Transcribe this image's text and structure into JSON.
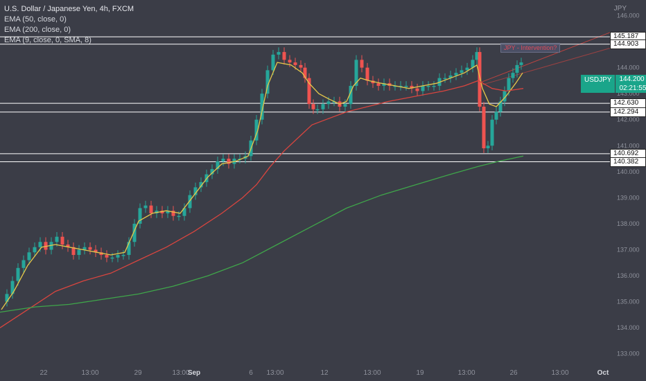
{
  "legend": {
    "title": "U.S. Dollar / Japanese Yen, 4h, FXCM",
    "ema50": "EMA (50, close, 0)",
    "ema200": "EMA (200, close, 0)",
    "ema9": "EMA (9, close, 0, SMA, 8)"
  },
  "currency": "JPY",
  "ticker": {
    "symbol": "USDJPY",
    "price": "144.200",
    "countdown": "02:21:55"
  },
  "annotation": "JPY - Intervention?",
  "colors": {
    "background": "#3b3d47",
    "up": "#26a69a",
    "down": "#ef5350",
    "ema9": "#e6c84a",
    "ema50": "#d9453f",
    "ema200": "#3fa64a",
    "level": "#ffffff",
    "trend": "#d9453f"
  },
  "levels": [
    {
      "name": "level-145187",
      "value": 145.187,
      "label": "145.187"
    },
    {
      "name": "level-144903",
      "value": 144.903,
      "label": "144.903"
    },
    {
      "name": "level-142630",
      "value": 142.63,
      "label": "142.630"
    },
    {
      "name": "level-142294",
      "value": 142.294,
      "label": "142.294"
    },
    {
      "name": "level-140692",
      "value": 140.692,
      "label": "140.692"
    },
    {
      "name": "level-140382",
      "value": 140.382,
      "label": "140.382"
    }
  ],
  "chart_data": {
    "type": "line",
    "title": "U.S. Dollar / Japanese Yen, 4h, FXCM",
    "ylim": [
      132.7,
      146.6
    ],
    "yticks": [
      {
        "value": 133,
        "label": "133.000"
      },
      {
        "value": 134,
        "label": "134.000"
      },
      {
        "value": 135,
        "label": "135.000"
      },
      {
        "value": 136,
        "label": "136.000"
      },
      {
        "value": 137,
        "label": "137.000"
      },
      {
        "value": 138,
        "label": "138.000"
      },
      {
        "value": 139,
        "label": "139.000"
      },
      {
        "value": 140,
        "label": "140.000"
      },
      {
        "value": 141,
        "label": "141.000"
      },
      {
        "value": 142,
        "label": "142.000"
      },
      {
        "value": 143,
        "label": "143.000"
      },
      {
        "value": 144,
        "label": "144.000"
      },
      {
        "value": 145,
        "label": "145.000"
      },
      {
        "value": 146,
        "label": "146.000"
      }
    ],
    "xlim": [
      0,
      930
    ],
    "xticks": [
      {
        "pos": 63,
        "label": "22"
      },
      {
        "pos": 130,
        "label": "13:00"
      },
      {
        "pos": 199,
        "label": "29"
      },
      {
        "pos": 261,
        "label": "13:00"
      },
      {
        "pos": 280,
        "label": "Sep"
      },
      {
        "pos": 362,
        "label": "6"
      },
      {
        "pos": 397,
        "label": "13:00"
      },
      {
        "pos": 468,
        "label": "12"
      },
      {
        "pos": 537,
        "label": "13:00"
      },
      {
        "pos": 606,
        "label": "19"
      },
      {
        "pos": 673,
        "label": "13:00"
      },
      {
        "pos": 741,
        "label": "26"
      },
      {
        "pos": 808,
        "label": "13:00"
      },
      {
        "pos": 870,
        "label": "Oct"
      }
    ],
    "close_series": [
      [
        2,
        135.0
      ],
      [
        10,
        135.3
      ],
      [
        18,
        135.8
      ],
      [
        26,
        136.3
      ],
      [
        34,
        136.6
      ],
      [
        42,
        136.9
      ],
      [
        50,
        137.1
      ],
      [
        58,
        137.3
      ],
      [
        66,
        137.0
      ],
      [
        74,
        137.3
      ],
      [
        82,
        137.5
      ],
      [
        90,
        137.2
      ],
      [
        98,
        137.1
      ],
      [
        106,
        136.8
      ],
      [
        114,
        137.0
      ],
      [
        122,
        137.1
      ],
      [
        130,
        137.0
      ],
      [
        138,
        136.9
      ],
      [
        146,
        136.8
      ],
      [
        154,
        136.7
      ],
      [
        162,
        136.7
      ],
      [
        170,
        136.8
      ],
      [
        178,
        136.8
      ],
      [
        186,
        137.3
      ],
      [
        194,
        138.0
      ],
      [
        202,
        138.6
      ],
      [
        210,
        138.7
      ],
      [
        218,
        138.4
      ],
      [
        226,
        138.5
      ],
      [
        234,
        138.4
      ],
      [
        242,
        138.5
      ],
      [
        250,
        138.3
      ],
      [
        258,
        138.3
      ],
      [
        266,
        138.6
      ],
      [
        274,
        139.1
      ],
      [
        282,
        139.4
      ],
      [
        290,
        139.6
      ],
      [
        298,
        139.9
      ],
      [
        306,
        140.1
      ],
      [
        314,
        140.4
      ],
      [
        322,
        140.5
      ],
      [
        330,
        140.3
      ],
      [
        338,
        140.5
      ],
      [
        346,
        140.5
      ],
      [
        354,
        140.6
      ],
      [
        362,
        141.2
      ],
      [
        370,
        142.0
      ],
      [
        378,
        143.0
      ],
      [
        386,
        143.9
      ],
      [
        394,
        144.5
      ],
      [
        402,
        144.6
      ],
      [
        410,
        144.3
      ],
      [
        418,
        144.2
      ],
      [
        426,
        144.1
      ],
      [
        434,
        144.0
      ],
      [
        440,
        143.6
      ],
      [
        446,
        142.6
      ],
      [
        452,
        142.4
      ],
      [
        458,
        142.4
      ],
      [
        466,
        142.6
      ],
      [
        474,
        142.7
      ],
      [
        482,
        142.7
      ],
      [
        490,
        142.5
      ],
      [
        498,
        142.6
      ],
      [
        506,
        143.3
      ],
      [
        514,
        144.3
      ],
      [
        522,
        144.0
      ],
      [
        530,
        143.5
      ],
      [
        538,
        143.4
      ],
      [
        546,
        143.3
      ],
      [
        554,
        143.4
      ],
      [
        562,
        143.3
      ],
      [
        570,
        143.3
      ],
      [
        578,
        143.3
      ],
      [
        586,
        143.3
      ],
      [
        594,
        143.2
      ],
      [
        602,
        143.1
      ],
      [
        610,
        143.3
      ],
      [
        618,
        143.3
      ],
      [
        626,
        143.3
      ],
      [
        634,
        143.6
      ],
      [
        642,
        143.6
      ],
      [
        650,
        143.7
      ],
      [
        658,
        143.8
      ],
      [
        666,
        143.9
      ],
      [
        674,
        144.0
      ],
      [
        682,
        144.3
      ],
      [
        688,
        144.6
      ],
      [
        692,
        142.5
      ],
      [
        698,
        140.9
      ],
      [
        704,
        141.0
      ],
      [
        710,
        142.0
      ],
      [
        716,
        142.3
      ],
      [
        722,
        142.7
      ],
      [
        728,
        143.1
      ],
      [
        734,
        143.6
      ],
      [
        740,
        143.8
      ],
      [
        746,
        144.1
      ],
      [
        752,
        144.2
      ]
    ],
    "series": [
      {
        "name": "EMA (9, close, 0, SMA, 8)",
        "color": "#e6c84a",
        "points": [
          [
            2,
            134.7
          ],
          [
            20,
            135.4
          ],
          [
            40,
            136.4
          ],
          [
            60,
            137.1
          ],
          [
            80,
            137.2
          ],
          [
            100,
            137.1
          ],
          [
            120,
            137.0
          ],
          [
            140,
            136.9
          ],
          [
            160,
            136.8
          ],
          [
            180,
            136.9
          ],
          [
            200,
            138.1
          ],
          [
            220,
            138.4
          ],
          [
            240,
            138.5
          ],
          [
            260,
            138.4
          ],
          [
            280,
            139.1
          ],
          [
            300,
            139.8
          ],
          [
            320,
            140.3
          ],
          [
            340,
            140.4
          ],
          [
            358,
            140.6
          ],
          [
            372,
            141.6
          ],
          [
            386,
            143.3
          ],
          [
            400,
            144.2
          ],
          [
            420,
            144.1
          ],
          [
            436,
            143.8
          ],
          [
            446,
            143.4
          ],
          [
            460,
            143.0
          ],
          [
            474,
            142.8
          ],
          [
            490,
            142.6
          ],
          [
            500,
            142.7
          ],
          [
            510,
            143.3
          ],
          [
            520,
            143.6
          ],
          [
            532,
            143.5
          ],
          [
            550,
            143.4
          ],
          [
            570,
            143.3
          ],
          [
            590,
            143.2
          ],
          [
            610,
            143.3
          ],
          [
            630,
            143.4
          ],
          [
            650,
            143.6
          ],
          [
            670,
            143.8
          ],
          [
            688,
            144.1
          ],
          [
            696,
            143.2
          ],
          [
            706,
            142.6
          ],
          [
            716,
            142.5
          ],
          [
            730,
            142.9
          ],
          [
            744,
            143.4
          ],
          [
            754,
            143.8
          ]
        ]
      },
      {
        "name": "EMA (50, close, 0)",
        "color": "#d9453f",
        "points": [
          [
            0,
            134.0
          ],
          [
            40,
            134.7
          ],
          [
            80,
            135.4
          ],
          [
            120,
            135.8
          ],
          [
            160,
            136.1
          ],
          [
            200,
            136.6
          ],
          [
            240,
            137.1
          ],
          [
            280,
            137.7
          ],
          [
            320,
            138.4
          ],
          [
            350,
            139.0
          ],
          [
            370,
            139.5
          ],
          [
            390,
            140.2
          ],
          [
            410,
            140.8
          ],
          [
            430,
            141.3
          ],
          [
            450,
            141.8
          ],
          [
            470,
            142.0
          ],
          [
            500,
            142.3
          ],
          [
            530,
            142.5
          ],
          [
            560,
            142.7
          ],
          [
            600,
            142.9
          ],
          [
            640,
            143.1
          ],
          [
            670,
            143.3
          ],
          [
            690,
            143.5
          ],
          [
            710,
            143.2
          ],
          [
            730,
            143.1
          ],
          [
            755,
            143.2
          ]
        ]
      },
      {
        "name": "EMA (200, close, 0)",
        "color": "#3fa64a",
        "points": [
          [
            0,
            134.6
          ],
          [
            50,
            134.8
          ],
          [
            100,
            134.9
          ],
          [
            150,
            135.1
          ],
          [
            200,
            135.3
          ],
          [
            250,
            135.6
          ],
          [
            300,
            136.0
          ],
          [
            350,
            136.5
          ],
          [
            400,
            137.2
          ],
          [
            450,
            137.9
          ],
          [
            500,
            138.6
          ],
          [
            550,
            139.1
          ],
          [
            600,
            139.5
          ],
          [
            650,
            139.9
          ],
          [
            690,
            140.2
          ],
          [
            720,
            140.4
          ],
          [
            755,
            140.6
          ]
        ]
      }
    ]
  }
}
